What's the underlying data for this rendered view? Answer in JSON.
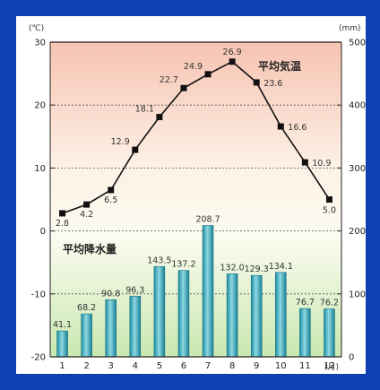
{
  "chart_data": {
    "type": "bar+line",
    "categories": [
      "1",
      "2",
      "3",
      "4",
      "5",
      "6",
      "7",
      "8",
      "9",
      "10",
      "11",
      "12"
    ],
    "x_unit": "(月)",
    "left_axis": {
      "unit": "(℃)",
      "range": [
        -20,
        30
      ],
      "ticks": [
        30,
        20,
        10,
        0,
        -10,
        -20
      ]
    },
    "right_axis": {
      "unit": "(mm)",
      "range": [
        0,
        500
      ],
      "ticks": [
        500,
        400,
        300,
        200,
        100,
        0
      ]
    },
    "series": [
      {
        "name": "平均気温",
        "type": "line",
        "axis": "left",
        "values": [
          2.8,
          4.2,
          6.5,
          12.9,
          18.1,
          22.7,
          24.9,
          26.9,
          23.6,
          16.6,
          10.9,
          5.0
        ],
        "labels": [
          "2.8",
          "4.2",
          "6.5",
          "12.9",
          "18.1",
          "22.7",
          "24.9",
          "26.9",
          "23.6",
          "16.6",
          "10.9",
          "5.0"
        ]
      },
      {
        "name": "平均降水量",
        "type": "bar",
        "axis": "right",
        "values": [
          41.1,
          68.2,
          90.8,
          96.3,
          143.5,
          137.2,
          208.7,
          132.0,
          129.3,
          134.1,
          76.7,
          76.2
        ],
        "labels": [
          "41.1",
          "68.2",
          "90.8",
          "96.3",
          "143.5",
          "137.2",
          "208.7",
          "132.0",
          "129.3",
          "134.1",
          "76.7",
          "76.2"
        ]
      }
    ],
    "grid": "dotted horizontal",
    "colors": {
      "bar": "#2fa8ba",
      "line": "#111111",
      "background_top": "#f6c7b4",
      "background_bottom": "#cde9b6"
    }
  }
}
